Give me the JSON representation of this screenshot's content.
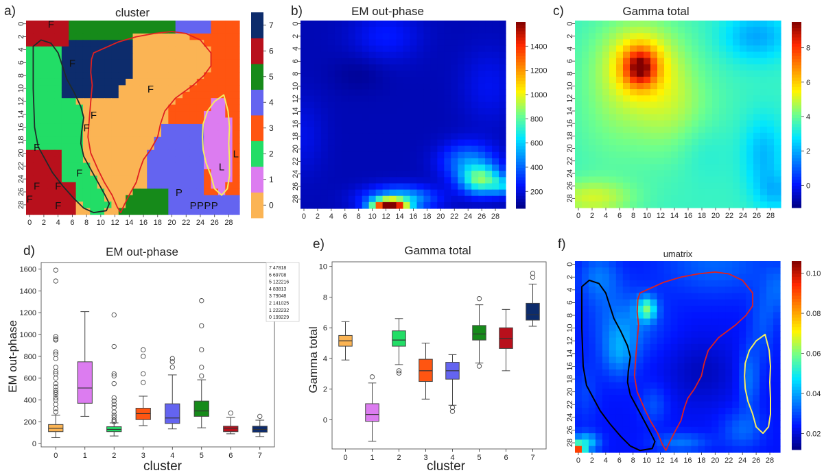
{
  "panels": [
    {
      "label": "a)",
      "title": "cluster"
    },
    {
      "label": "b)",
      "title": "EM out-phase"
    },
    {
      "label": "c)",
      "title": "Gamma total"
    },
    {
      "label": "d)",
      "title": "EM out-phase"
    },
    {
      "label": "e)",
      "title": "Gamma total"
    },
    {
      "label": "f)",
      "title": "umatrix"
    }
  ],
  "grid_ticks": [
    "0",
    "2",
    "4",
    "6",
    "8",
    "10",
    "12",
    "14",
    "16",
    "18",
    "20",
    "22",
    "24",
    "26",
    "28"
  ],
  "colors": {
    "cluster_colors": [
      "#FBB454",
      "#DC7CF0",
      "#22DD66",
      "#FF5511",
      "#6464F0",
      "#168A1A",
      "#B8101C",
      "#0D2C6C"
    ],
    "contour_red": "#E02020",
    "contour_black": "#1A1A1A",
    "contour_yellow": "#F5EE60"
  },
  "chart_data": [
    {
      "id": "a",
      "type": "heatmap",
      "title": "cluster",
      "colorbar": {
        "ticks": [
          "0",
          "1",
          "2",
          "3",
          "4",
          "5",
          "6",
          "7"
        ]
      },
      "annotations": [
        {
          "text": "F",
          "row": 0,
          "col": 3
        },
        {
          "text": "F",
          "row": 6,
          "col": 6
        },
        {
          "text": "F",
          "row": 10,
          "col": 17
        },
        {
          "text": "F",
          "row": 14,
          "col": 9
        },
        {
          "text": "F",
          "row": 16,
          "col": 8
        },
        {
          "text": "F",
          "row": 19,
          "col": 1
        },
        {
          "text": "F",
          "row": 23,
          "col": 7
        },
        {
          "text": "F",
          "row": 25,
          "col": 1
        },
        {
          "text": "F",
          "row": 25,
          "col": 4
        },
        {
          "text": "F",
          "row": 27,
          "col": 0
        },
        {
          "text": "F",
          "row": 28,
          "col": 4
        },
        {
          "text": "P",
          "row": 26,
          "col": 21
        },
        {
          "text": "P",
          "row": 28,
          "col": 23
        },
        {
          "text": "P",
          "row": 28,
          "col": 24
        },
        {
          "text": "P",
          "row": 28,
          "col": 25
        },
        {
          "text": "P",
          "row": 28,
          "col": 26
        },
        {
          "text": "L",
          "row": 22,
          "col": 27
        },
        {
          "text": "L",
          "row": 20,
          "col": 29
        }
      ]
    },
    {
      "id": "b",
      "type": "heatmap",
      "title": "EM out-phase",
      "colorbar": {
        "min": 60,
        "max": 1600,
        "ticks": [
          200,
          400,
          600,
          800,
          1000,
          1200,
          1400
        ]
      }
    },
    {
      "id": "c",
      "type": "heatmap",
      "title": "Gamma total",
      "colorbar": {
        "min": -1.3,
        "max": 9.5,
        "ticks": [
          0,
          2,
          4,
          6,
          8
        ]
      }
    },
    {
      "id": "d",
      "type": "box",
      "title": "EM out-phase",
      "xlabel": "cluster",
      "ylabel": "EM out-phase",
      "categories": [
        "0",
        "1",
        "2",
        "3",
        "4",
        "5",
        "6",
        "7"
      ],
      "ylim": [
        -30,
        1660
      ],
      "yticks": [
        0,
        200,
        400,
        600,
        800,
        1000,
        1200,
        1400,
        1600
      ],
      "boxes": [
        {
          "q1": 110,
          "med": 140,
          "q3": 175,
          "lo": 55,
          "hi": 260,
          "out": [
            290,
            320,
            360,
            400,
            420,
            450,
            470,
            490,
            520,
            550,
            600,
            640,
            660,
            700,
            780,
            820,
            840,
            950,
            960,
            980,
            1490,
            1590
          ]
        },
        {
          "q1": 370,
          "med": 510,
          "q3": 750,
          "lo": 250,
          "hi": 1210,
          "out": []
        },
        {
          "q1": 110,
          "med": 130,
          "q3": 155,
          "lo": 70,
          "hi": 190,
          "out": [
            200,
            215,
            240,
            260,
            290,
            330,
            360,
            390,
            420,
            550,
            620,
            640,
            890,
            1180
          ]
        },
        {
          "q1": 220,
          "med": 275,
          "q3": 325,
          "lo": 165,
          "hi": 435,
          "out": [
            560,
            640,
            800,
            860
          ]
        },
        {
          "q1": 185,
          "med": 235,
          "q3": 365,
          "lo": 135,
          "hi": 630,
          "out": [
            700,
            750,
            780
          ]
        },
        {
          "q1": 250,
          "med": 300,
          "q3": 390,
          "lo": 145,
          "hi": 585,
          "out": [
            620,
            700,
            860,
            1080,
            1310
          ]
        },
        {
          "q1": 110,
          "med": 140,
          "q3": 160,
          "lo": 90,
          "hi": 240,
          "out": [
            280
          ]
        },
        {
          "q1": 105,
          "med": 130,
          "q3": 160,
          "lo": 65,
          "hi": 215,
          "out": [
            250
          ]
        }
      ],
      "legend": [
        "7  47818",
        "6  69708",
        "5  122216",
        "4  83813",
        "3  79048",
        "2  141025",
        "1  222232",
        "0  199229"
      ]
    },
    {
      "id": "e",
      "type": "box",
      "title": "Gamma total",
      "xlabel": "cluster",
      "ylabel": "Gamma total",
      "categories": [
        "0",
        "1",
        "2",
        "3",
        "4",
        "5",
        "6",
        "7"
      ],
      "ylim": [
        -1.9,
        10.3
      ],
      "yticks": [
        0,
        2,
        4,
        6,
        8,
        10
      ],
      "boxes": [
        {
          "q1": 4.8,
          "med": 5.15,
          "q3": 5.5,
          "lo": 3.9,
          "hi": 6.4,
          "out": []
        },
        {
          "q1": -0.1,
          "med": 0.35,
          "q3": 1.05,
          "lo": -1.4,
          "hi": 2.4,
          "out": [
            2.8
          ]
        },
        {
          "q1": 4.8,
          "med": 5.2,
          "q3": 5.8,
          "lo": 3.6,
          "hi": 6.6,
          "out": [
            3.2,
            3.05
          ]
        },
        {
          "q1": 2.5,
          "med": 3.2,
          "q3": 3.95,
          "lo": 1.35,
          "hi": 5.0,
          "out": []
        },
        {
          "q1": 2.65,
          "med": 3.2,
          "q3": 3.75,
          "lo": 0.95,
          "hi": 4.25,
          "out": [
            0.8,
            0.55
          ]
        },
        {
          "q1": 5.2,
          "med": 5.6,
          "q3": 6.15,
          "lo": 3.7,
          "hi": 7.5,
          "out": [
            7.9,
            3.5
          ]
        },
        {
          "q1": 4.65,
          "med": 5.3,
          "q3": 6.0,
          "lo": 3.2,
          "hi": 7.2,
          "out": []
        },
        {
          "q1": 6.5,
          "med": 6.85,
          "q3": 7.6,
          "lo": 6.1,
          "hi": 8.85,
          "out": [
            9.3,
            9.55
          ]
        }
      ]
    },
    {
      "id": "f",
      "type": "heatmap",
      "title": "umatrix",
      "colorbar": {
        "min": 0.012,
        "max": 0.106,
        "ticks": [
          "0.02",
          "0.04",
          "0.06",
          "0.08",
          "0.10"
        ]
      }
    }
  ]
}
